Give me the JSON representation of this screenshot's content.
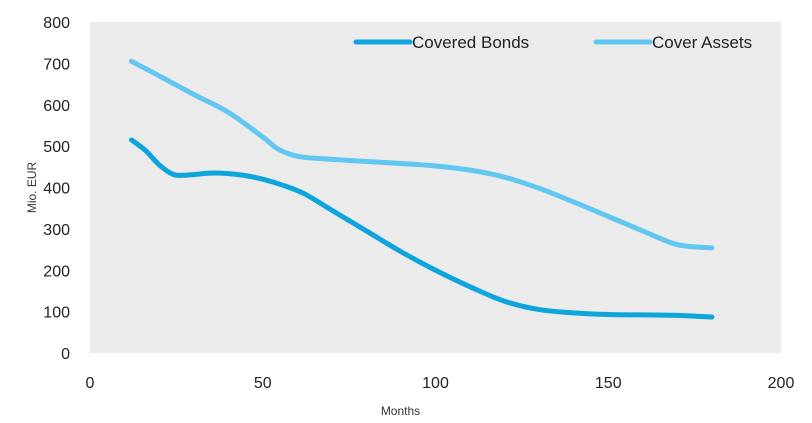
{
  "chart_data": {
    "type": "line",
    "title": "",
    "xlabel": "Months",
    "ylabel": "Mio. EUR",
    "xlim": [
      0,
      200
    ],
    "ylim": [
      0,
      800
    ],
    "xticks": [
      0,
      50,
      100,
      150,
      200
    ],
    "yticks": [
      0,
      100,
      200,
      300,
      400,
      500,
      600,
      700,
      800
    ],
    "grid": false,
    "background": "#ebebeb",
    "legend_position": "top-right",
    "series": [
      {
        "name": "Covered Bonds",
        "color": "#0ea4dc",
        "x": [
          12,
          16,
          20,
          24,
          28,
          36,
          44,
          50,
          56,
          62,
          70,
          80,
          90,
          100,
          110,
          120,
          130,
          140,
          150,
          160,
          170,
          175,
          180
        ],
        "y": [
          515,
          490,
          455,
          432,
          430,
          435,
          430,
          420,
          405,
          385,
          345,
          295,
          245,
          200,
          160,
          125,
          105,
          97,
          93,
          92,
          91,
          89,
          87
        ]
      },
      {
        "name": "Cover Assets",
        "color": "#61c6f0",
        "x": [
          12,
          20,
          30,
          40,
          50,
          54,
          58,
          62,
          70,
          80,
          90,
          100,
          110,
          120,
          130,
          140,
          150,
          160,
          170,
          180
        ],
        "y": [
          705,
          670,
          625,
          582,
          522,
          495,
          480,
          473,
          468,
          463,
          458,
          452,
          442,
          425,
          398,
          365,
          330,
          295,
          262,
          254
        ]
      }
    ]
  }
}
